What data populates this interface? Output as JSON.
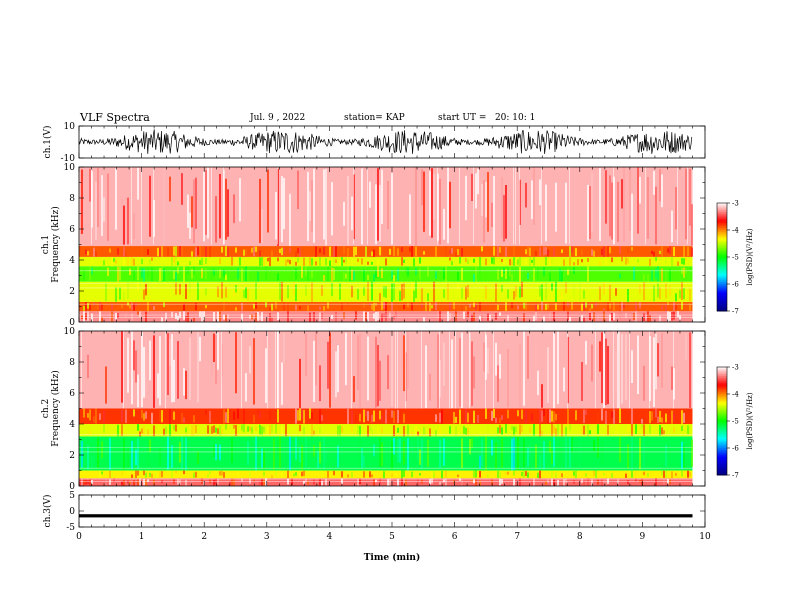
{
  "header": {
    "title": "VLF Spectra",
    "date": "Jul. 9 , 2022",
    "station": "station= KAP",
    "start": "start UT =   20: 10: 1"
  },
  "chart_data": [
    {
      "type": "line",
      "panel": "ch1-waveform",
      "ylabel": "ch.1(V)",
      "ylim": [
        -10,
        10
      ],
      "yticks": [
        "10",
        "-10"
      ],
      "xlim": [
        0,
        10
      ],
      "description_values": "noisy waveform spanning roughly -8 to +8 V over 0 to 9.8 min"
    },
    {
      "type": "heatmap",
      "panel": "ch1-spectrogram",
      "ylabel_top": "ch.1",
      "ylabel": "Frequency (kHz)",
      "ylim": [
        0,
        10
      ],
      "yticks": [
        "0",
        "2",
        "4",
        "6",
        "8",
        "10"
      ],
      "xlim": [
        0,
        10
      ],
      "data_xmax": 9.8,
      "bands": [
        {
          "from": 0,
          "to": 0.7,
          "level": -3.3
        },
        {
          "from": 0.7,
          "to": 1.3,
          "level": -3.9
        },
        {
          "from": 1.3,
          "to": 2.6,
          "level": -4.4
        },
        {
          "from": 2.6,
          "to": 3.6,
          "level": -4.8
        },
        {
          "from": 3.6,
          "to": 4.2,
          "level": -4.4
        },
        {
          "from": 4.2,
          "to": 4.9,
          "level": -3.9
        },
        {
          "from": 4.9,
          "to": 10,
          "level": -3.2
        }
      ]
    },
    {
      "type": "heatmap",
      "panel": "ch2-spectrogram",
      "ylabel_top": "ch.2",
      "ylabel": "Frequency (kHz)",
      "ylim": [
        0,
        10
      ],
      "yticks": [
        "0",
        "2",
        "4",
        "6",
        "8",
        "10"
      ],
      "xlim": [
        0,
        10
      ],
      "data_xmax": 9.8,
      "bands": [
        {
          "from": 0,
          "to": 0.5,
          "level": -3.4
        },
        {
          "from": 0.5,
          "to": 1.0,
          "level": -4.3
        },
        {
          "from": 1.0,
          "to": 3.2,
          "level": -5.2
        },
        {
          "from": 3.2,
          "to": 4.0,
          "level": -4.4
        },
        {
          "from": 4.0,
          "to": 5.0,
          "level": -3.8
        },
        {
          "from": 5.0,
          "to": 10,
          "level": -3.2
        }
      ]
    },
    {
      "type": "line",
      "panel": "ch3-waveform",
      "ylabel": "ch.3(V)",
      "ylim": [
        -5,
        5
      ],
      "yticks": [
        "5",
        "0",
        "-5"
      ],
      "xlim": [
        0,
        10
      ],
      "xticks": [
        "0",
        "1",
        "2",
        "3",
        "4",
        "5",
        "6",
        "7",
        "8",
        "9",
        "10"
      ],
      "xlabel": "Time (min)",
      "values_approx": [
        -1.0,
        -2.0
      ]
    }
  ],
  "colorbar": {
    "label": "log(PSD)(V²/Hz)",
    "ticks": [
      "-3",
      "-4",
      "-5",
      "-6",
      "-7"
    ],
    "range": [
      -7,
      -3
    ],
    "colors": [
      "#000080",
      "#0000ff",
      "#00ffff",
      "#00ff00",
      "#ffff00",
      "#ff0000",
      "#ffffff"
    ]
  }
}
